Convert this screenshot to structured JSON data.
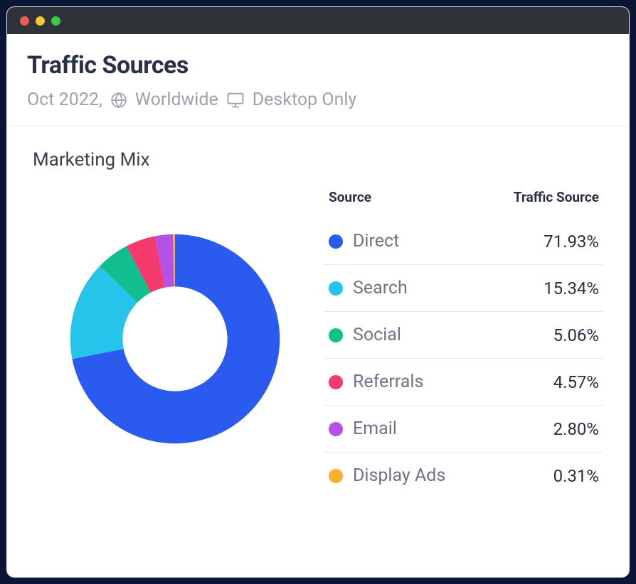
{
  "window": {
    "titlebar_dots": [
      "#ef5b59",
      "#f7c23c",
      "#35cd4b"
    ]
  },
  "header": {
    "title": "Traffic Sources",
    "date": "Oct 2022,",
    "scope": "Worldwide",
    "device": "Desktop Only",
    "sub_color": "#9ca1af"
  },
  "chart": {
    "section_title": "Marketing Mix",
    "legend_headers": {
      "left": "Source",
      "right": "Traffic Source"
    },
    "type": "donut",
    "inner_radius_ratio": 0.5,
    "start_angle_deg": -90,
    "direction": "clockwise",
    "background_color": "#ffffff",
    "series": [
      {
        "label": "Direct",
        "value": 71.93,
        "display": "71.93%",
        "color": "#2a5bee"
      },
      {
        "label": "Search",
        "value": 15.34,
        "display": "15.34%",
        "color": "#26c3ea"
      },
      {
        "label": "Social",
        "value": 5.06,
        "display": "5.06%",
        "color": "#10bf8d"
      },
      {
        "label": "Referrals",
        "value": 4.57,
        "display": "4.57%",
        "color": "#f43a6a"
      },
      {
        "label": "Email",
        "value": 2.8,
        "display": "2.80%",
        "color": "#b550e8"
      },
      {
        "label": "Display Ads",
        "value": 0.31,
        "display": "0.31%",
        "color": "#f7b029"
      }
    ]
  },
  "styles": {
    "title_color": "#2a3045",
    "label_color": "#6e7385",
    "value_color": "#2a3045",
    "divider_color": "#e6e8ee"
  }
}
